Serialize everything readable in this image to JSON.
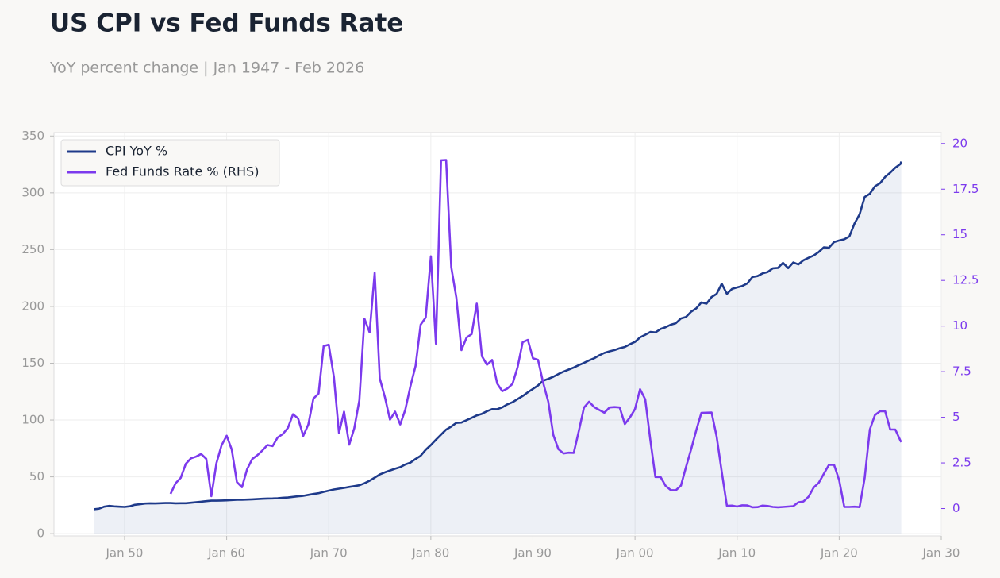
{
  "chart_data": {
    "type": "line",
    "title": "US CPI vs Fed Funds Rate",
    "subtitle": "YoY percent change | Jan 1947 - Feb 2026",
    "x": [
      "1947-01",
      "1947-07",
      "1948-01",
      "1948-07",
      "1949-01",
      "1949-07",
      "1950-01",
      "1950-07",
      "1951-01",
      "1951-07",
      "1952-01",
      "1952-07",
      "1953-01",
      "1953-07",
      "1954-01",
      "1954-07",
      "1955-01",
      "1955-07",
      "1956-01",
      "1956-07",
      "1957-01",
      "1957-07",
      "1958-01",
      "1958-07",
      "1959-01",
      "1959-07",
      "1960-01",
      "1960-07",
      "1961-01",
      "1961-07",
      "1962-01",
      "1962-07",
      "1963-01",
      "1963-07",
      "1964-01",
      "1964-07",
      "1965-01",
      "1965-07",
      "1966-01",
      "1966-07",
      "1967-01",
      "1967-07",
      "1968-01",
      "1968-07",
      "1969-01",
      "1969-07",
      "1970-01",
      "1970-07",
      "1971-01",
      "1971-07",
      "1972-01",
      "1972-07",
      "1973-01",
      "1973-07",
      "1974-01",
      "1974-07",
      "1975-01",
      "1975-07",
      "1976-01",
      "1976-07",
      "1977-01",
      "1977-07",
      "1978-01",
      "1978-07",
      "1979-01",
      "1979-07",
      "1980-01",
      "1980-07",
      "1981-01",
      "1981-07",
      "1982-01",
      "1982-07",
      "1983-01",
      "1983-07",
      "1984-01",
      "1984-07",
      "1985-01",
      "1985-07",
      "1986-01",
      "1986-07",
      "1987-01",
      "1987-07",
      "1988-01",
      "1988-07",
      "1989-01",
      "1989-07",
      "1990-01",
      "1990-07",
      "1991-01",
      "1991-07",
      "1992-01",
      "1992-07",
      "1993-01",
      "1993-07",
      "1994-01",
      "1994-07",
      "1995-01",
      "1995-07",
      "1996-01",
      "1996-07",
      "1997-01",
      "1997-07",
      "1998-01",
      "1998-07",
      "1999-01",
      "1999-07",
      "2000-01",
      "2000-07",
      "2001-01",
      "2001-07",
      "2002-01",
      "2002-07",
      "2003-01",
      "2003-07",
      "2004-01",
      "2004-07",
      "2005-01",
      "2005-07",
      "2006-01",
      "2006-07",
      "2007-01",
      "2007-07",
      "2008-01",
      "2008-07",
      "2009-01",
      "2009-07",
      "2010-01",
      "2010-07",
      "2011-01",
      "2011-07",
      "2012-01",
      "2012-07",
      "2013-01",
      "2013-07",
      "2014-01",
      "2014-07",
      "2015-01",
      "2015-07",
      "2016-01",
      "2016-07",
      "2017-01",
      "2017-07",
      "2018-01",
      "2018-07",
      "2019-01",
      "2019-07",
      "2020-01",
      "2020-07",
      "2021-01",
      "2021-07",
      "2022-01",
      "2022-07",
      "2023-01",
      "2023-07",
      "2024-01",
      "2024-07",
      "2025-01",
      "2025-07",
      "2026-01",
      "2026-02"
    ],
    "series": [
      {
        "name": "CPI YoY %",
        "color": "#1e3a8a",
        "area": true,
        "values": [
          21.5,
          22.0,
          23.7,
          24.4,
          24.0,
          23.7,
          23.5,
          24.1,
          25.4,
          25.9,
          26.5,
          26.7,
          26.6,
          26.8,
          26.9,
          26.9,
          26.7,
          26.8,
          26.8,
          27.2,
          27.6,
          28.1,
          28.6,
          29.0,
          29.0,
          29.2,
          29.3,
          29.6,
          29.8,
          29.9,
          30.0,
          30.2,
          30.4,
          30.7,
          30.9,
          31.0,
          31.2,
          31.6,
          31.8,
          32.4,
          32.9,
          33.3,
          34.1,
          34.9,
          35.6,
          36.8,
          37.8,
          38.9,
          39.6,
          40.3,
          41.1,
          41.8,
          42.6,
          44.3,
          46.6,
          49.3,
          52.1,
          54.0,
          55.6,
          57.1,
          58.5,
          60.9,
          62.5,
          65.7,
          68.5,
          73.8,
          78.0,
          82.7,
          87.2,
          91.6,
          94.3,
          97.5,
          97.8,
          99.9,
          101.9,
          104.1,
          105.5,
          107.8,
          109.6,
          109.5,
          111.2,
          113.8,
          115.7,
          118.5,
          121.1,
          124.4,
          127.4,
          130.4,
          134.6,
          136.2,
          138.1,
          140.5,
          142.6,
          144.4,
          146.2,
          148.4,
          150.3,
          152.5,
          154.4,
          157.0,
          159.1,
          160.5,
          161.6,
          163.2,
          164.3,
          166.7,
          168.8,
          172.8,
          175.1,
          177.5,
          177.1,
          180.1,
          181.7,
          183.9,
          185.2,
          189.4,
          190.7,
          195.4,
          198.3,
          203.5,
          202.4,
          208.3,
          211.1,
          220.0,
          211.1,
          215.4,
          216.7,
          218.0,
          220.2,
          225.9,
          226.7,
          229.1,
          230.3,
          233.6,
          233.9,
          238.3,
          233.7,
          238.7,
          236.9,
          240.6,
          242.8,
          244.8,
          247.9,
          252.0,
          251.7,
          256.6,
          258.0,
          259.1,
          261.6,
          273.0,
          281.1,
          296.3,
          299.2,
          305.7,
          308.4,
          314.0,
          317.7,
          322.1,
          325.3,
          327.5
        ]
      },
      {
        "name": "Fed Funds Rate % (RHS)",
        "color": "#7c3aed",
        "axis": "y2",
        "values": [
          null,
          null,
          null,
          null,
          null,
          null,
          null,
          null,
          null,
          null,
          null,
          null,
          null,
          null,
          null,
          0.8,
          1.39,
          1.68,
          2.45,
          2.75,
          2.84,
          2.99,
          2.72,
          0.68,
          2.48,
          3.47,
          3.99,
          3.23,
          1.45,
          1.17,
          2.15,
          2.71,
          2.92,
          3.18,
          3.48,
          3.42,
          3.9,
          4.08,
          4.42,
          5.17,
          4.94,
          3.98,
          4.61,
          6.02,
          6.3,
          8.9,
          8.98,
          7.21,
          4.14,
          5.31,
          3.5,
          4.4,
          5.94,
          10.4,
          9.65,
          12.92,
          7.13,
          6.1,
          4.87,
          5.31,
          4.61,
          5.42,
          6.7,
          7.81,
          10.07,
          10.47,
          13.82,
          9.03,
          19.08,
          19.1,
          13.22,
          11.56,
          8.68,
          9.37,
          9.56,
          11.23,
          8.35,
          7.88,
          8.14,
          6.85,
          6.43,
          6.58,
          6.83,
          7.75,
          9.12,
          9.24,
          8.23,
          8.15,
          6.91,
          5.86,
          4.03,
          3.25,
          3.02,
          3.06,
          3.05,
          4.26,
          5.53,
          5.85,
          5.56,
          5.4,
          5.25,
          5.54,
          5.56,
          5.54,
          4.63,
          4.99,
          5.45,
          6.54,
          5.98,
          3.77,
          1.73,
          1.73,
          1.24,
          1.01,
          1.0,
          1.26,
          2.28,
          3.26,
          4.29,
          5.24,
          5.25,
          5.26,
          3.94,
          2.01,
          0.15,
          0.16,
          0.11,
          0.18,
          0.17,
          0.07,
          0.08,
          0.16,
          0.14,
          0.09,
          0.07,
          0.09,
          0.11,
          0.13,
          0.34,
          0.39,
          0.65,
          1.15,
          1.41,
          1.91,
          2.4,
          2.4,
          1.55,
          0.09,
          0.09,
          0.1,
          0.08,
          1.68,
          4.33,
          5.12,
          5.33,
          5.33,
          4.33,
          4.33,
          3.72,
          3.64
        ]
      }
    ],
    "xlim": [
      "1943-02",
      "2030-01"
    ],
    "xticks": [
      {
        "value": "1950-01",
        "label": "Jan 50"
      },
      {
        "value": "1960-01",
        "label": "Jan 60"
      },
      {
        "value": "1970-01",
        "label": "Jan 70"
      },
      {
        "value": "1980-01",
        "label": "Jan 80"
      },
      {
        "value": "1990-01",
        "label": "Jan 90"
      },
      {
        "value": "2000-01",
        "label": "Jan 00"
      },
      {
        "value": "2010-01",
        "label": "Jan 10"
      },
      {
        "value": "2020-01",
        "label": "Jan 20"
      },
      {
        "value": "2030-01",
        "label": "Jan 30"
      }
    ],
    "ylim": [
      -2,
      353
    ],
    "yticks": [
      0,
      50,
      100,
      150,
      200,
      250,
      300,
      350
    ],
    "y2lim": [
      -1.5,
      20.6
    ],
    "y2ticks": [
      0,
      2.5,
      5,
      7.5,
      10,
      12.5,
      15,
      17.5,
      20
    ],
    "grid": true,
    "legend": "upper left"
  }
}
